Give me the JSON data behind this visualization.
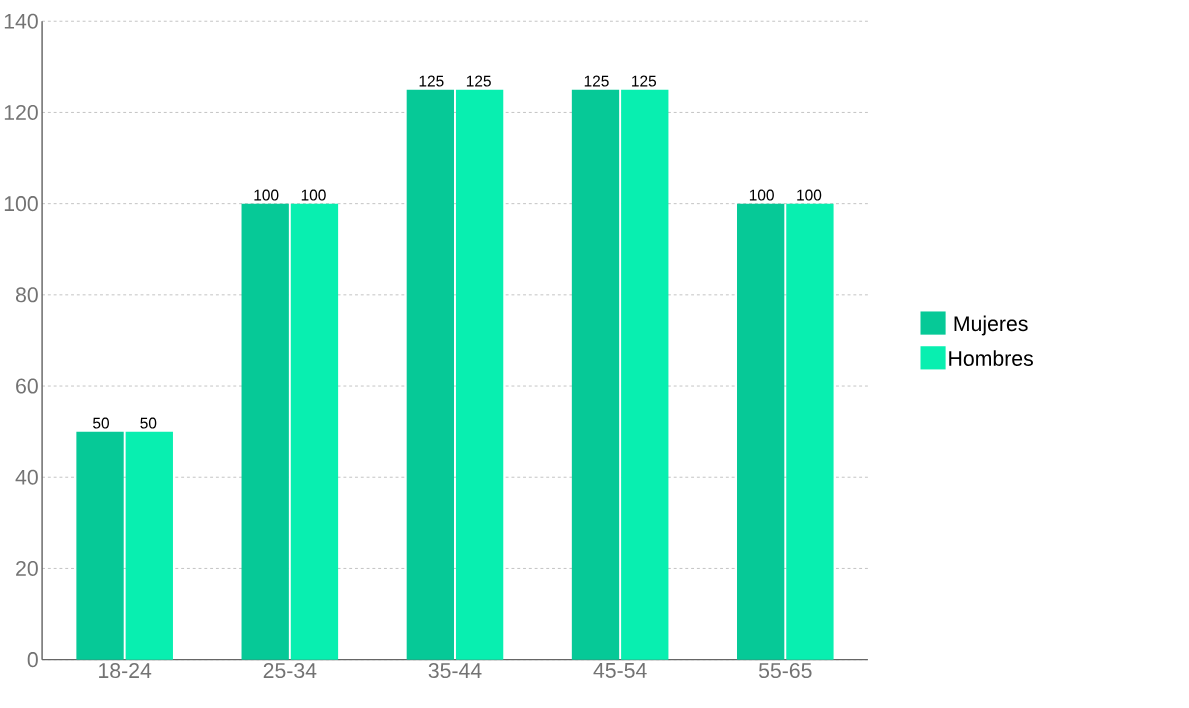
{
  "chart_data": {
    "type": "bar",
    "categories": [
      "18-24",
      "25-34",
      "35-44",
      "45-54",
      "55-65"
    ],
    "series": [
      {
        "name": "Mujeres",
        "color": "#06c997",
        "values": [
          50,
          100,
          125,
          125,
          100
        ]
      },
      {
        "name": "Hombres",
        "color": "#08efb0",
        "values": [
          50,
          100,
          125,
          125,
          100
        ]
      }
    ],
    "ylim": [
      0,
      140
    ],
    "yticks": [
      0,
      20,
      40,
      60,
      80,
      100,
      120,
      140
    ],
    "grid": "y",
    "legend": "right",
    "data_labels": true
  }
}
